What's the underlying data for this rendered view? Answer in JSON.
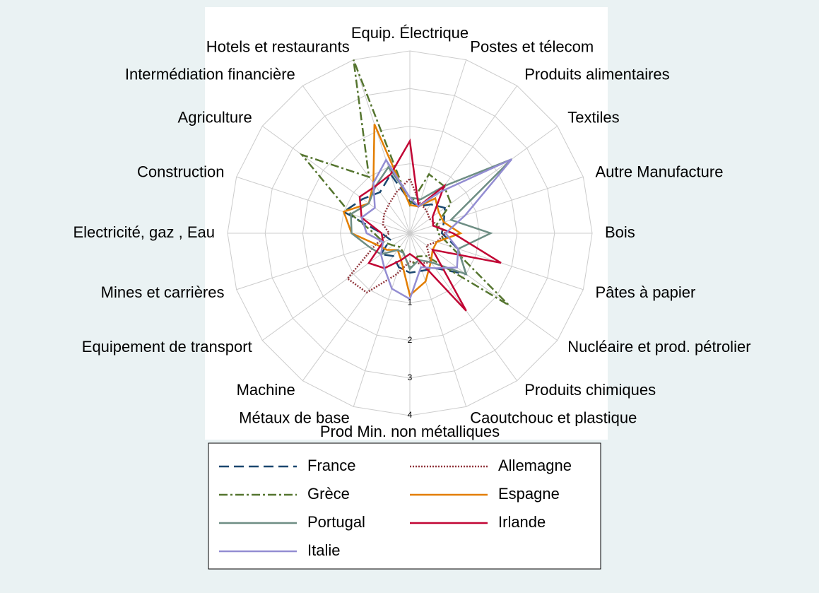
{
  "chart_data": {
    "type": "radar",
    "categories": [
      "Equip. Électrique",
      "Postes et télecom",
      "Produits alimentaires",
      "Textiles",
      "Autre Manufacture",
      "Bois",
      "Pâtes à papier",
      "Nucléaire et prod. pétrolier",
      "Produits chimiques",
      "Caoutchouc et plastique",
      "Prod Min. non métalliques",
      "Métaux de base",
      "Machine",
      "Equipement de transport",
      "Mines et carrières",
      "Electricité, gaz , Eau",
      "Construction",
      "Agriculture",
      "Intermédiation financière",
      "Hotels et restaurants"
    ],
    "rlim": [
      -0.85,
      4
    ],
    "rticks": [
      1,
      2,
      3,
      4
    ],
    "series": [
      {
        "name": "France",
        "color": "#1a476f",
        "dash": "14 7",
        "values": [
          0.0,
          -0.1,
          0.1,
          0.3,
          0.1,
          0.0,
          0.5,
          1.0,
          0.3,
          0.2,
          0.2,
          0.1,
          -0.1,
          0.1,
          -0.3,
          -0.1,
          1.0,
          0.7,
          0.5,
          0.8
        ]
      },
      {
        "name": "Allemagne",
        "color": "#90353b",
        "dash": "2 2",
        "values": [
          0.6,
          0.0,
          -0.1,
          -0.2,
          -0.1,
          0.1,
          -0.1,
          -0.3,
          0.1,
          0.0,
          -0.1,
          0.3,
          1.1,
          1.2,
          0.1,
          -0.3,
          -0.1,
          0.0,
          0.1,
          0.3
        ]
      },
      {
        "name": "Grèce",
        "color": "#55752f",
        "dash": "12 4 3 4",
        "values": [
          -0.1,
          0.8,
          0.7,
          0.5,
          -0.1,
          -0.1,
          0.3,
          2.4,
          -0.1,
          -0.2,
          0.1,
          -0.3,
          -0.4,
          -0.3,
          -0.1,
          0.1,
          0.8,
          2.7,
          1.0,
          4.0
        ]
      },
      {
        "name": "Espagne",
        "color": "#e37e00",
        "dash": "none",
        "values": [
          -0.1,
          -0.1,
          0.3,
          0.1,
          0.1,
          0.5,
          -0.1,
          -0.1,
          0.1,
          0.5,
          0.8,
          -0.1,
          -0.3,
          -0.1,
          0.1,
          0.7,
          1.0,
          0.5,
          0.8,
          2.2
        ]
      },
      {
        "name": "Portugal",
        "color": "#6e8e84",
        "dash": "none",
        "values": [
          0.1,
          0.1,
          0.7,
          2.5,
          0.3,
          1.3,
          0.5,
          1.0,
          0.1,
          -0.1,
          0.1,
          -0.3,
          -0.3,
          0.1,
          0.3,
          0.7,
          0.8,
          0.5,
          0.7,
          1.0
        ]
      },
      {
        "name": "Irlande",
        "color": "#c10534",
        "dash": "none",
        "values": [
          1.6,
          -0.1,
          0.7,
          -0.1,
          -0.2,
          0.3,
          1.7,
          -0.1,
          1.7,
          -0.1,
          -0.3,
          -0.1,
          0.3,
          0.5,
          -0.1,
          -0.1,
          0.5,
          0.8,
          0.7,
          0.8
        ]
      },
      {
        "name": "Italie",
        "color": "#938dd2",
        "dash": "none",
        "values": [
          0.1,
          -0.1,
          0.5,
          2.5,
          0.7,
          0.1,
          0.5,
          0.7,
          0.3,
          0.1,
          0.9,
          0.7,
          0.3,
          0.1,
          -0.1,
          0.3,
          0.5,
          0.3,
          0.8,
          1.2
        ]
      }
    ],
    "legend": "bottom"
  }
}
